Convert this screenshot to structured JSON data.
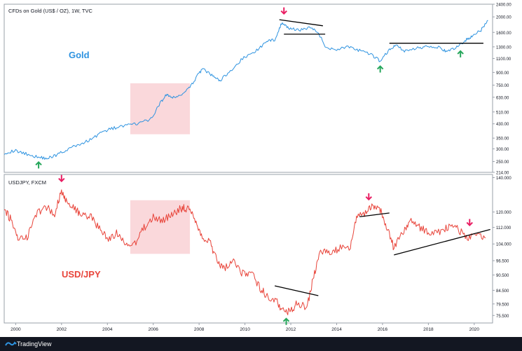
{
  "chart_data": [
    {
      "type": "line",
      "title": "CFDs on Gold (US$ / OZ), 1W, TVC",
      "annotation": "Gold",
      "scale": "log",
      "ylim": [
        214,
        2400
      ],
      "xlim": [
        1999.5,
        2020.8
      ],
      "y_ticks": [
        "250.00",
        "300.00",
        "350.00",
        "430.00",
        "510.00",
        "630.00",
        "750.00",
        "900.00",
        "1100.00",
        "1300.00",
        "1600.00",
        "2000.00",
        "2400.00",
        "214.00"
      ],
      "x": [
        1999.5,
        2000.0,
        2000.5,
        2001.0,
        2001.4,
        2001.8,
        2002.3,
        2002.8,
        2003.3,
        2003.8,
        2004.3,
        2004.8,
        2005.3,
        2005.9,
        2006.3,
        2006.6,
        2006.8,
        2007.2,
        2007.6,
        2008.0,
        2008.2,
        2008.6,
        2008.9,
        2009.3,
        2009.9,
        2010.4,
        2010.9,
        2011.3,
        2011.6,
        2011.9,
        2012.3,
        2012.8,
        2013.2,
        2013.5,
        2014.0,
        2014.5,
        2015.0,
        2015.5,
        2015.9,
        2016.3,
        2016.6,
        2017.0,
        2017.6,
        2018.0,
        2018.5,
        2018.8,
        2019.2,
        2019.6,
        2019.9,
        2020.3,
        2020.6
      ],
      "values": [
        283,
        292,
        278,
        266,
        262,
        276,
        300,
        320,
        345,
        385,
        405,
        420,
        430,
        460,
        580,
        660,
        620,
        650,
        720,
        900,
        940,
        850,
        800,
        900,
        1100,
        1200,
        1380,
        1450,
        1820,
        1700,
        1650,
        1720,
        1600,
        1300,
        1250,
        1310,
        1230,
        1160,
        1060,
        1250,
        1330,
        1220,
        1280,
        1320,
        1290,
        1200,
        1290,
        1420,
        1520,
        1650,
        1900
      ],
      "horizontal_lines": [
        {
          "x": [
            2016.3,
            2020.4
          ],
          "y": 1370
        },
        {
          "x": [
            2011.7,
            2013.5
          ],
          "y": 1560
        }
      ],
      "trend_lines": [
        {
          "x": [
            2011.5,
            2013.4
          ],
          "y": [
            1920,
            1760
          ]
        }
      ],
      "shaded_region": {
        "x": [
          2005.0,
          2007.6
        ],
        "y": [
          370,
          770
        ]
      },
      "arrows": [
        {
          "x": 2001.0,
          "y": 238,
          "dir": "up",
          "color": "#26a65b"
        },
        {
          "x": 2011.7,
          "y": 2180,
          "dir": "down",
          "color": "#e91e63"
        },
        {
          "x": 2015.9,
          "y": 945,
          "dir": "up",
          "color": "#26a65b"
        },
        {
          "x": 2019.4,
          "y": 1175,
          "dir": "up",
          "color": "#26a65b"
        }
      ],
      "color": "#2e93e0"
    },
    {
      "type": "line",
      "title": "USDJPY, FXCM",
      "annotation": "USD/JPY",
      "scale": "log",
      "ylim": [
        73,
        142
      ],
      "xlim": [
        1999.5,
        2020.8
      ],
      "y_ticks": [
        "140.000",
        "120.000",
        "112.000",
        "104.000",
        "96.500",
        "90.500",
        "84.500",
        "79.500",
        "75.500"
      ],
      "x_ticks": [
        "2000",
        "2002",
        "2004",
        "2006",
        "2008",
        "2010",
        "2012",
        "2014",
        "2016",
        "2018",
        "2020"
      ],
      "x": [
        1999.5,
        1999.8,
        2000.1,
        2000.5,
        2000.9,
        2001.3,
        2001.7,
        2002.0,
        2002.2,
        2002.6,
        2002.9,
        2003.3,
        2003.7,
        2004.0,
        2004.4,
        2004.8,
        2005.2,
        2005.6,
        2006.0,
        2006.4,
        2006.8,
        2007.2,
        2007.5,
        2007.8,
        2008.1,
        2008.5,
        2008.8,
        2009.1,
        2009.5,
        2009.9,
        2010.3,
        2010.7,
        2011.0,
        2011.4,
        2011.7,
        2012.0,
        2012.3,
        2012.7,
        2013.0,
        2013.3,
        2013.7,
        2014.1,
        2014.6,
        2014.9,
        2015.3,
        2015.6,
        2015.9,
        2016.2,
        2016.5,
        2016.9,
        2017.2,
        2017.6,
        2018.0,
        2018.5,
        2018.9,
        2019.3,
        2019.7,
        2020.1,
        2020.5
      ],
      "values": [
        121,
        116,
        106,
        107,
        119,
        123,
        119,
        132,
        127,
        121,
        119,
        117,
        111,
        106,
        109,
        104,
        104,
        112,
        117,
        116,
        118,
        122,
        122,
        117,
        108,
        104,
        96,
        93,
        97,
        91,
        91,
        85,
        82,
        80,
        77,
        77,
        80,
        78,
        90,
        100,
        100,
        102,
        103,
        118,
        120,
        124,
        121,
        112,
        102,
        110,
        115,
        112,
        110,
        110,
        112,
        111,
        107,
        109,
        107
      ],
      "trend_lines": [
        {
          "x": [
            2011.3,
            2013.2
          ],
          "y": [
            86.2,
            82.5
          ]
        },
        {
          "x": [
            2015.0,
            2016.3
          ],
          "y": [
            117.5,
            119.5
          ]
        },
        {
          "x": [
            2016.5,
            2020.7
          ],
          "y": [
            99.0,
            111.0
          ]
        }
      ],
      "shaded_region": {
        "x": [
          2005.0,
          2007.6
        ],
        "y": [
          99.5,
          126.5
        ]
      },
      "arrows": [
        {
          "x": 2002.0,
          "y": 139.5,
          "dir": "down",
          "color": "#e91e63"
        },
        {
          "x": 2011.8,
          "y": 73.5,
          "dir": "up",
          "color": "#26a65b"
        },
        {
          "x": 2015.4,
          "y": 128.5,
          "dir": "down",
          "color": "#e91e63"
        },
        {
          "x": 2019.8,
          "y": 114.5,
          "dir": "down",
          "color": "#e91e63"
        }
      ],
      "color": "#e8443a"
    }
  ],
  "footer": {
    "brand": "TradingView"
  }
}
